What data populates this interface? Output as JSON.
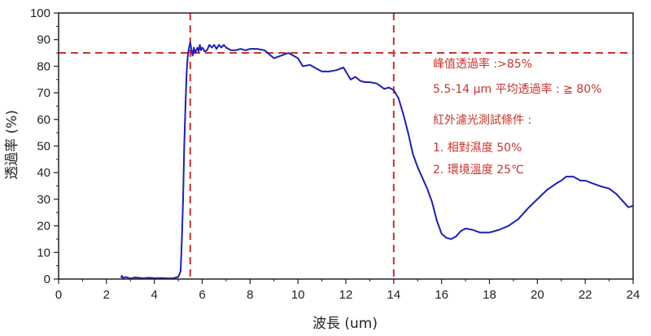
{
  "chart_data": {
    "type": "line",
    "xlabel": "波長 (um)",
    "ylabel": "透過率 (%)",
    "xlim": [
      0,
      24
    ],
    "ylim": [
      0,
      100
    ],
    "x_ticks": [
      0,
      2,
      4,
      6,
      8,
      10,
      12,
      14,
      16,
      18,
      20,
      22,
      24
    ],
    "y_ticks": [
      0,
      10,
      20,
      30,
      40,
      50,
      60,
      70,
      80,
      90,
      100
    ],
    "grid": false,
    "series": [
      {
        "color": "#1f1fb8",
        "x": [
          2.6,
          2.65,
          2.7,
          2.8,
          3.0,
          3.2,
          3.5,
          3.8,
          4.0,
          4.3,
          4.6,
          4.8,
          5.0,
          5.1,
          5.15,
          5.2,
          5.25,
          5.3,
          5.35,
          5.4,
          5.45,
          5.5,
          5.55,
          5.6,
          5.65,
          5.7,
          5.75,
          5.8,
          5.85,
          5.9,
          5.95,
          6.0,
          6.05,
          6.1,
          6.2,
          6.3,
          6.4,
          6.5,
          6.6,
          6.7,
          6.8,
          6.9,
          7.0,
          7.2,
          7.4,
          7.6,
          7.8,
          8.0,
          8.3,
          8.6,
          9.0,
          9.3,
          9.6,
          9.8,
          10.0,
          10.2,
          10.5,
          10.8,
          11.0,
          11.3,
          11.6,
          11.9,
          12.0,
          12.2,
          12.4,
          12.6,
          12.8,
          13.0,
          13.3,
          13.6,
          13.8,
          14.0,
          14.2,
          14.4,
          14.6,
          14.8,
          15.0,
          15.2,
          15.4,
          15.6,
          15.8,
          16.0,
          16.2,
          16.4,
          16.6,
          16.8,
          17.0,
          17.3,
          17.6,
          18.0,
          18.4,
          18.8,
          19.2,
          19.6,
          20.0,
          20.4,
          20.8,
          21.0,
          21.2,
          21.5,
          21.8,
          22.0,
          22.3,
          22.6,
          23.0,
          23.3,
          23.6,
          23.8,
          24.0
        ],
        "y": [
          0.5,
          1.2,
          0.3,
          0.8,
          0.2,
          0.6,
          0.3,
          0.5,
          0.3,
          0.4,
          0.2,
          0.3,
          0.8,
          3.0,
          15.0,
          30.0,
          50.0,
          65.0,
          78.0,
          84.0,
          87.0,
          89.0,
          86.0,
          84.0,
          87.0,
          85.0,
          86.0,
          87.0,
          85.5,
          88.0,
          86.0,
          87.0,
          86.5,
          85.5,
          86.0,
          88.0,
          87.0,
          88.0,
          86.5,
          88.0,
          87.0,
          88.0,
          87.0,
          86.0,
          86.0,
          86.5,
          86.0,
          86.5,
          86.5,
          86.0,
          83.0,
          84.0,
          85.0,
          84.0,
          83.0,
          80.0,
          80.5,
          79.0,
          78.0,
          78.0,
          78.5,
          79.5,
          78.0,
          75.0,
          76.0,
          74.5,
          74.0,
          74.0,
          73.5,
          71.5,
          72.0,
          71.0,
          68.0,
          62.0,
          55.0,
          47.0,
          42.0,
          38.0,
          34.0,
          29.0,
          22.0,
          17.0,
          15.5,
          15.0,
          16.0,
          18.0,
          19.0,
          18.5,
          17.5,
          17.5,
          18.5,
          20.0,
          22.5,
          26.5,
          30.0,
          33.5,
          36.0,
          37.0,
          38.5,
          38.5,
          37.0,
          37.0,
          36.0,
          35.0,
          34.0,
          32.0,
          29.0,
          27.0,
          27.5
        ]
      }
    ],
    "reference_lines": [
      {
        "orientation": "horizontal",
        "value": 85,
        "color": "#d0302a",
        "style": "dashed"
      },
      {
        "orientation": "vertical",
        "value": 5.5,
        "color": "#d0302a",
        "style": "dashed"
      },
      {
        "orientation": "vertical",
        "value": 14,
        "color": "#d0302a",
        "style": "dashed"
      }
    ],
    "annotations": [
      "峰值透過率 :>85%",
      "5.5-14 μm 平均透過率 : ≧ 80%",
      "紅外濾光測試條件 :",
      "1. 相對濕度 50%",
      "2. 環境溫度 25℃"
    ]
  }
}
